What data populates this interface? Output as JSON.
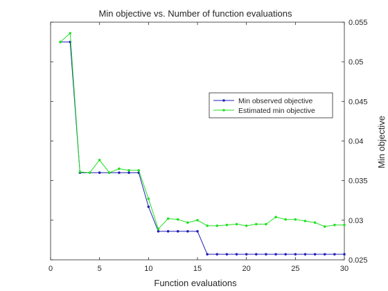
{
  "chart_data": {
    "type": "line",
    "title": "Min objective vs. Number of function evaluations",
    "xlabel": "Function evaluations",
    "ylabel": "Min objective",
    "xlim": [
      0,
      30
    ],
    "ylim": [
      0.025,
      0.055
    ],
    "x_ticks": [
      0,
      5,
      10,
      15,
      20,
      25,
      30
    ],
    "y_ticks": [
      0.025,
      0.03,
      0.035,
      0.04,
      0.045,
      0.05,
      0.055
    ],
    "y_axis_side": "right",
    "grid": false,
    "legend_position": "right-center",
    "x": [
      1,
      2,
      3,
      4,
      5,
      6,
      7,
      8,
      9,
      10,
      11,
      12,
      13,
      14,
      15,
      16,
      17,
      18,
      19,
      20,
      21,
      22,
      23,
      24,
      25,
      26,
      27,
      28,
      29,
      30
    ],
    "series": [
      {
        "name": "Min observed objective",
        "color": "#1f1fb4",
        "marker": "dot",
        "values": [
          0.0525,
          0.0525,
          0.036,
          0.036,
          0.036,
          0.036,
          0.036,
          0.036,
          0.036,
          0.0317,
          0.0286,
          0.0286,
          0.0286,
          0.0286,
          0.0286,
          0.0257,
          0.0257,
          0.0257,
          0.0257,
          0.0257,
          0.0257,
          0.0257,
          0.0257,
          0.0257,
          0.0257,
          0.0257,
          0.0257,
          0.0257,
          0.0257,
          0.0257
        ]
      },
      {
        "name": "Estimated min objective",
        "color": "#22e022",
        "marker": "dot",
        "values": [
          0.0525,
          0.0536,
          0.0361,
          0.036,
          0.0376,
          0.036,
          0.0365,
          0.0363,
          0.0363,
          0.0327,
          0.0289,
          0.0302,
          0.0301,
          0.0297,
          0.03,
          0.0293,
          0.0293,
          0.0294,
          0.0295,
          0.0293,
          0.0295,
          0.0295,
          0.0304,
          0.0301,
          0.0301,
          0.0299,
          0.0297,
          0.0292,
          0.0294,
          0.0294
        ]
      }
    ]
  }
}
